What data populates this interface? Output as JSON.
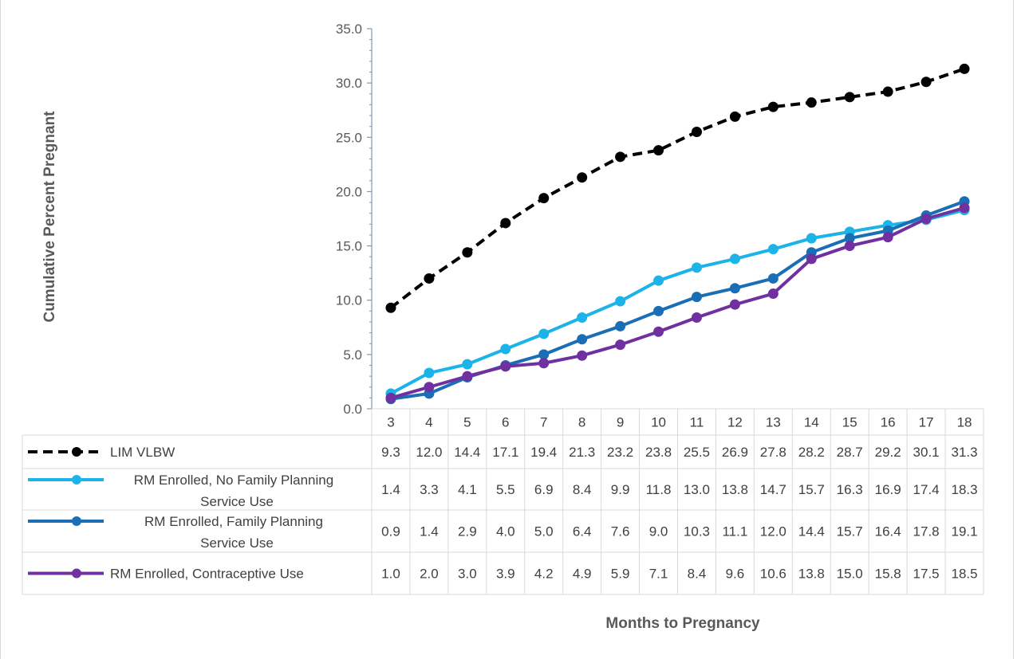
{
  "chart_data": {
    "type": "line",
    "xlabel": "Months to Pregnancy",
    "ylabel": "Cumulative Percent Pregnant",
    "ylim": [
      0,
      35
    ],
    "yticks": [
      "0.0",
      "5.0",
      "10.0",
      "15.0",
      "20.0",
      "25.0",
      "30.0",
      "35.0"
    ],
    "categories": [
      "3",
      "4",
      "5",
      "6",
      "7",
      "8",
      "9",
      "10",
      "11",
      "12",
      "13",
      "14",
      "15",
      "16",
      "17",
      "18"
    ],
    "legend_placement": "data-table-left",
    "grid": false,
    "series": [
      {
        "name": "LIM VLBW",
        "name_lines": [
          "LIM VLBW"
        ],
        "color": "#000000",
        "dashed": true,
        "values": [
          9.3,
          12.0,
          14.4,
          17.1,
          19.4,
          21.3,
          23.2,
          23.8,
          25.5,
          26.9,
          27.8,
          28.2,
          28.7,
          29.2,
          30.1,
          31.3
        ],
        "labels": [
          "9.3",
          "12.0",
          "14.4",
          "17.1",
          "19.4",
          "21.3",
          "23.2",
          "23.8",
          "25.5",
          "26.9",
          "27.8",
          "28.2",
          "28.7",
          "29.2",
          "30.1",
          "31.3"
        ]
      },
      {
        "name": "RM Enrolled, No Family Planning Service Use",
        "name_lines": [
          "RM Enrolled, No Family Planning",
          "Service Use"
        ],
        "color": "#1cb4e8",
        "dashed": false,
        "values": [
          1.4,
          3.3,
          4.1,
          5.5,
          6.9,
          8.4,
          9.9,
          11.8,
          13.0,
          13.8,
          14.7,
          15.7,
          16.3,
          16.9,
          17.4,
          18.3
        ],
        "labels": [
          "1.4",
          "3.3",
          "4.1",
          "5.5",
          "6.9",
          "8.4",
          "9.9",
          "11.8",
          "13.0",
          "13.8",
          "14.7",
          "15.7",
          "16.3",
          "16.9",
          "17.4",
          "18.3"
        ]
      },
      {
        "name": "RM Enrolled, Family Planning Service Use",
        "name_lines": [
          "RM Enrolled, Family Planning",
          "Service Use"
        ],
        "color": "#1a6eb5",
        "dashed": false,
        "values": [
          0.9,
          1.4,
          2.9,
          4.0,
          5.0,
          6.4,
          7.6,
          9.0,
          10.3,
          11.1,
          12.0,
          14.4,
          15.7,
          16.4,
          17.8,
          19.1
        ],
        "labels": [
          "0.9",
          "1.4",
          "2.9",
          "4.0",
          "5.0",
          "6.4",
          "7.6",
          "9.0",
          "10.3",
          "11.1",
          "12.0",
          "14.4",
          "15.7",
          "16.4",
          "17.8",
          "19.1"
        ]
      },
      {
        "name": "RM Enrolled, Contraceptive Use",
        "name_lines": [
          "RM Enrolled, Contraceptive Use"
        ],
        "color": "#7030a0",
        "dashed": false,
        "values": [
          1.0,
          2.0,
          3.0,
          3.9,
          4.2,
          4.9,
          5.9,
          7.1,
          8.4,
          9.6,
          10.6,
          13.8,
          15.0,
          15.8,
          17.5,
          18.5
        ],
        "labels": [
          "1.0",
          "2.0",
          "3.0",
          "3.9",
          "4.2",
          "4.9",
          "5.9",
          "7.1",
          "8.4",
          "9.6",
          "10.6",
          "13.8",
          "15.0",
          "15.8",
          "17.5",
          "18.5"
        ]
      }
    ]
  }
}
